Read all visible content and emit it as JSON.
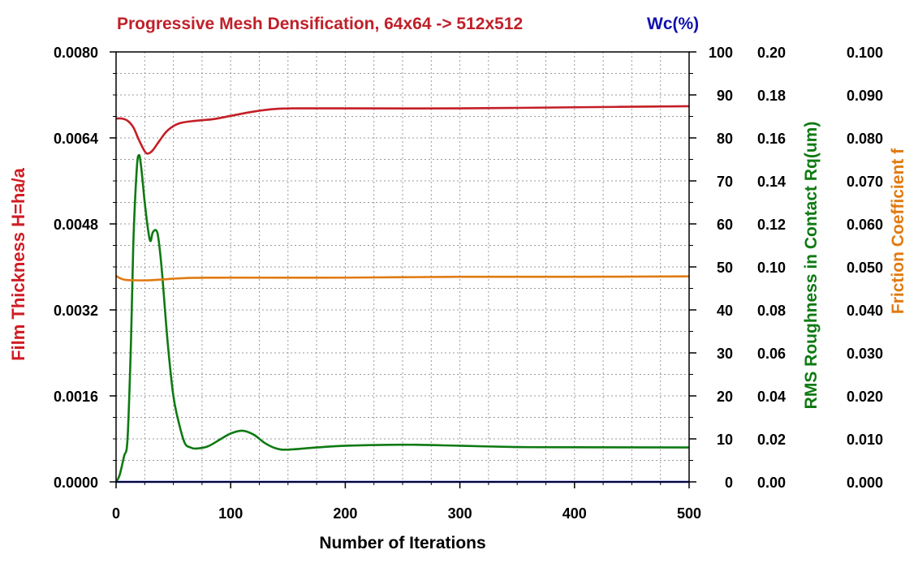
{
  "chart_data": {
    "type": "line",
    "title": "Progressive Mesh Densification, 64x64 -> 512x512",
    "title_color": "#c0202a",
    "secondary_title": "Wc(%)",
    "secondary_title_color": "#1010b0",
    "xlabel": "Number of Iterations",
    "x_ticks": [
      "0",
      "100",
      "200",
      "300",
      "400",
      "500"
    ],
    "xlim": [
      0,
      500
    ],
    "grid": true,
    "axes": {
      "left": {
        "label": "Film Thickness H=ha/a",
        "color": "#d01c24",
        "ylim": [
          0,
          0.008
        ],
        "ticks": [
          "0.0000",
          "0.0016",
          "0.0032",
          "0.0048",
          "0.0064",
          "0.0080"
        ]
      },
      "wc": {
        "label": "Wc(%)",
        "color": "#1010b0",
        "ylim": [
          0,
          100
        ],
        "ticks": [
          "0",
          "10",
          "20",
          "30",
          "40",
          "50",
          "60",
          "70",
          "80",
          "90",
          "100"
        ]
      },
      "rq": {
        "label": "RMS Roughness in Contact Rq(um)",
        "color": "#0e7a12",
        "ylim": [
          0,
          0.2
        ],
        "ticks": [
          "0.00",
          "0.02",
          "0.04",
          "0.06",
          "0.08",
          "0.10",
          "0.12",
          "0.14",
          "0.16",
          "0.18",
          "0.20"
        ]
      },
      "f": {
        "label": "Friction Coefficient f",
        "color": "#e07a10",
        "ylim": [
          0,
          0.1
        ],
        "ticks": [
          "0.000",
          "0.010",
          "0.020",
          "0.030",
          "0.040",
          "0.050",
          "0.060",
          "0.070",
          "0.080",
          "0.090",
          "0.100"
        ]
      }
    },
    "series": [
      {
        "axis": "left",
        "color": "#c41e26",
        "points": [
          [
            0,
            0.00676
          ],
          [
            5,
            0.00676
          ],
          [
            10,
            0.00672
          ],
          [
            15,
            0.0066
          ],
          [
            20,
            0.00636
          ],
          [
            25,
            0.00615
          ],
          [
            28,
            0.00611
          ],
          [
            32,
            0.00617
          ],
          [
            38,
            0.00635
          ],
          [
            45,
            0.00654
          ],
          [
            55,
            0.00667
          ],
          [
            70,
            0.00672
          ],
          [
            85,
            0.00675
          ],
          [
            100,
            0.00681
          ],
          [
            120,
            0.00689
          ],
          [
            140,
            0.00694
          ],
          [
            160,
            0.00695
          ],
          [
            200,
            0.00695
          ],
          [
            300,
            0.00695
          ],
          [
            400,
            0.00697
          ],
          [
            500,
            0.00699
          ]
        ]
      },
      {
        "axis": "rq",
        "color": "#0e7a12",
        "points": [
          [
            0,
            0
          ],
          [
            3,
            0.003
          ],
          [
            7,
            0.012
          ],
          [
            10,
            0.02
          ],
          [
            13,
            0.065
          ],
          [
            15,
            0.11
          ],
          [
            18,
            0.145
          ],
          [
            20,
            0.152
          ],
          [
            22,
            0.146
          ],
          [
            25,
            0.13
          ],
          [
            28,
            0.117
          ],
          [
            30,
            0.112
          ],
          [
            32,
            0.116
          ],
          [
            35,
            0.117
          ],
          [
            37,
            0.113
          ],
          [
            40,
            0.098
          ],
          [
            45,
            0.065
          ],
          [
            50,
            0.04
          ],
          [
            55,
            0.027
          ],
          [
            60,
            0.018
          ],
          [
            65,
            0.016
          ],
          [
            70,
            0.0155
          ],
          [
            80,
            0.0165
          ],
          [
            90,
            0.0195
          ],
          [
            100,
            0.0225
          ],
          [
            110,
            0.0238
          ],
          [
            120,
            0.022
          ],
          [
            130,
            0.018
          ],
          [
            140,
            0.0155
          ],
          [
            150,
            0.015
          ],
          [
            175,
            0.016
          ],
          [
            200,
            0.0168
          ],
          [
            250,
            0.0173
          ],
          [
            300,
            0.0168
          ],
          [
            350,
            0.0162
          ],
          [
            400,
            0.0161
          ],
          [
            500,
            0.016
          ]
        ]
      },
      {
        "axis": "f",
        "color": "#e07a10",
        "points": [
          [
            0,
            0.0479
          ],
          [
            4,
            0.0473
          ],
          [
            8,
            0.047
          ],
          [
            15,
            0.0469
          ],
          [
            30,
            0.0469
          ],
          [
            60,
            0.0474
          ],
          [
            100,
            0.0475
          ],
          [
            200,
            0.0475
          ],
          [
            300,
            0.0477
          ],
          [
            400,
            0.0477
          ],
          [
            500,
            0.0478
          ]
        ]
      },
      {
        "axis": "wc",
        "color": "#1414c8",
        "points": [
          [
            0,
            0
          ],
          [
            500,
            0
          ]
        ]
      }
    ]
  }
}
